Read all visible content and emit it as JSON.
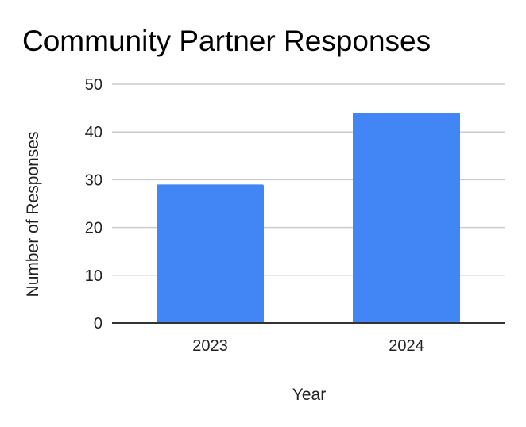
{
  "chart_data": {
    "type": "bar",
    "title": "Community Partner Responses",
    "xlabel": "Year",
    "ylabel": "Number of Responses",
    "categories": [
      "2023",
      "2024"
    ],
    "values": [
      29,
      44
    ],
    "ylim": [
      0,
      50
    ],
    "yticks": [
      0,
      10,
      20,
      30,
      40,
      50
    ],
    "grid": true,
    "legend": "none",
    "bar_color": "#4285f4",
    "grid_color": "#cccccc",
    "axis_color": "#333333"
  }
}
